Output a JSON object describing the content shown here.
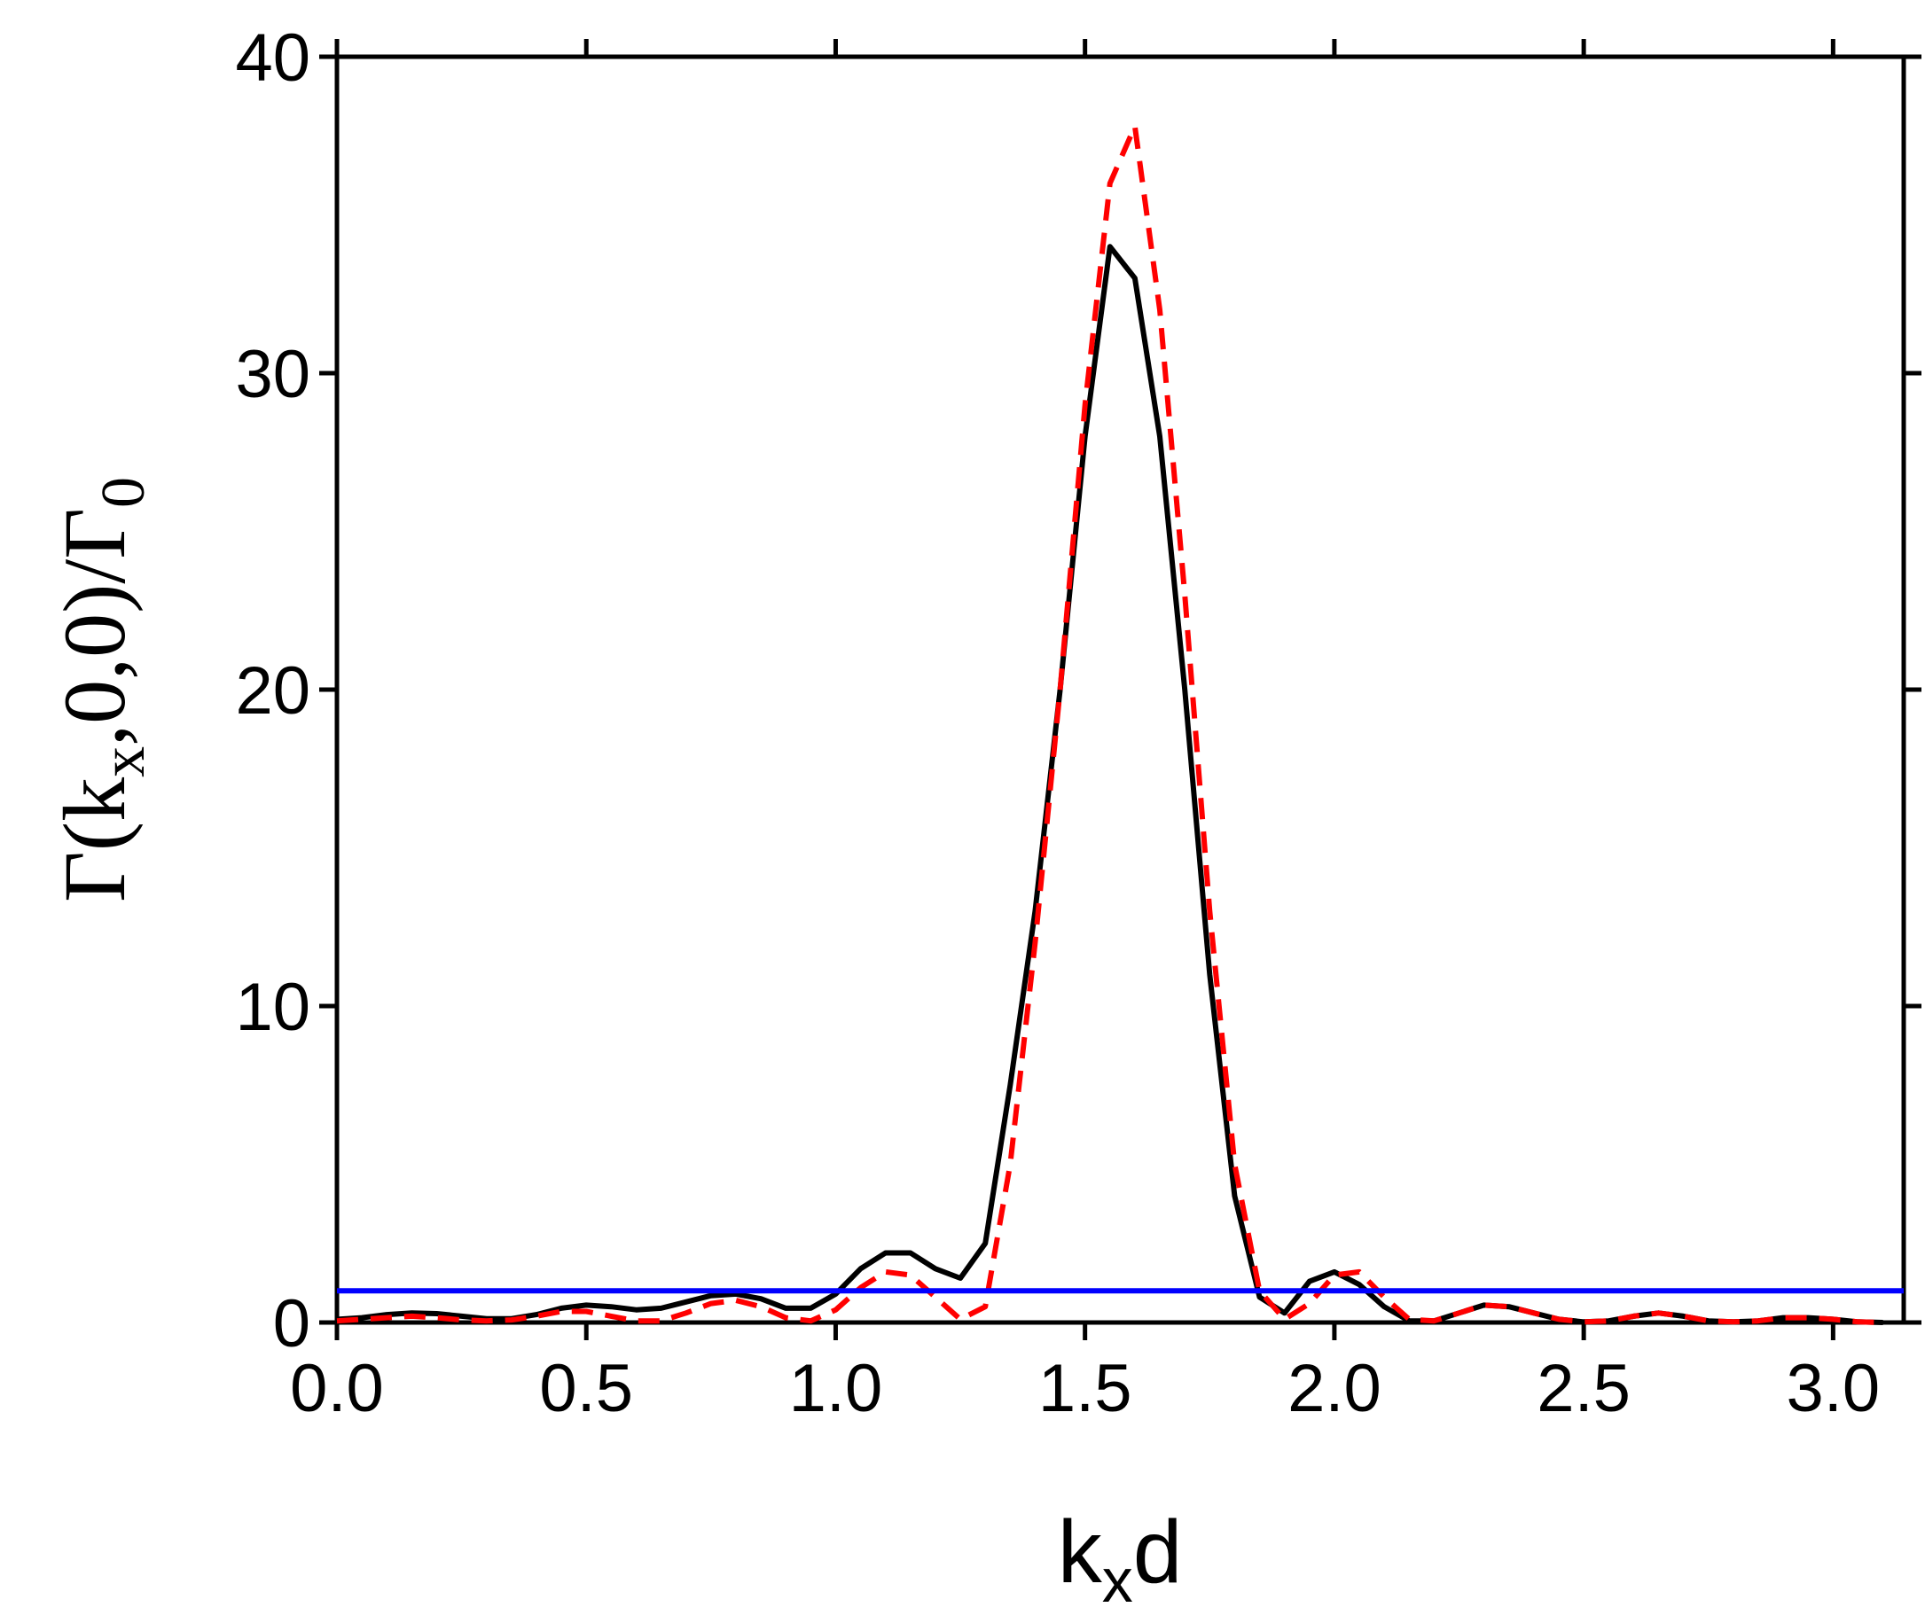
{
  "chart_data": {
    "type": "line",
    "xlabel": [
      "k",
      "x",
      "d"
    ],
    "ylabel": [
      "Γ(k",
      "x",
      ",0,0)/Γ",
      "0"
    ],
    "x": [
      0,
      0.05,
      0.1,
      0.15,
      0.2,
      0.25,
      0.3,
      0.35,
      0.4,
      0.45,
      0.5,
      0.55,
      0.6,
      0.65,
      0.7,
      0.75,
      0.8,
      0.85,
      0.9,
      0.95,
      1.0,
      1.05,
      1.1,
      1.15,
      1.2,
      1.25,
      1.3,
      1.35,
      1.4,
      1.45,
      1.5,
      1.55,
      1.6,
      1.65,
      1.7,
      1.75,
      1.8,
      1.85,
      1.9,
      1.95,
      2.0,
      2.05,
      2.1,
      2.15,
      2.2,
      2.25,
      2.3,
      2.35,
      2.4,
      2.45,
      2.5,
      2.55,
      2.6,
      2.65,
      2.7,
      2.75,
      2.8,
      2.85,
      2.9,
      2.95,
      3.0,
      3.05,
      3.1
    ],
    "series": [
      {
        "color": "#000000",
        "dash": false,
        "values": [
          0.1,
          0.15,
          0.25,
          0.3,
          0.28,
          0.2,
          0.12,
          0.12,
          0.25,
          0.45,
          0.55,
          0.5,
          0.4,
          0.45,
          0.65,
          0.85,
          0.9,
          0.75,
          0.45,
          0.45,
          0.9,
          1.7,
          2.2,
          2.2,
          1.7,
          1.4,
          2.5,
          7.5,
          13,
          20,
          28,
          34,
          33,
          28,
          20,
          11,
          4,
          0.8,
          0.3,
          1.3,
          1.6,
          1.2,
          0.5,
          0.05,
          0.05,
          0.3,
          0.55,
          0.5,
          0.3,
          0.1,
          0.02,
          0.05,
          0.2,
          0.3,
          0.2,
          0.05,
          0.02,
          0.05,
          0.15,
          0.15,
          0.1,
          0.02,
          0.0
        ]
      },
      {
        "color": "#ff0000",
        "dash": true,
        "values": [
          0.05,
          0.1,
          0.15,
          0.2,
          0.15,
          0.08,
          0.05,
          0.08,
          0.2,
          0.35,
          0.35,
          0.2,
          0.05,
          0.05,
          0.3,
          0.6,
          0.7,
          0.5,
          0.15,
          0.05,
          0.4,
          1.1,
          1.6,
          1.5,
          0.8,
          0.1,
          0.5,
          5,
          12,
          20,
          29,
          36,
          37.8,
          32,
          23,
          13,
          5,
          1,
          0.1,
          0.6,
          1.5,
          1.6,
          0.8,
          0.1,
          0.05,
          0.3,
          0.55,
          0.5,
          0.3,
          0.1,
          0.02,
          0.05,
          0.2,
          0.3,
          0.2,
          0.05,
          0.02,
          0.05,
          0.15,
          0.15,
          0.1,
          0.02,
          0.0
        ]
      },
      {
        "color": "#0000ff",
        "dash": false,
        "x": [
          0,
          3.1416
        ],
        "values": [
          1,
          1
        ]
      }
    ],
    "xlim": [
      0,
      3.1416
    ],
    "ylim": [
      0,
      40
    ],
    "xticks": [
      {
        "value": 0,
        "label": "0.0"
      },
      {
        "value": 0.5,
        "label": "0.5"
      },
      {
        "value": 1,
        "label": "1.0"
      },
      {
        "value": 1.5,
        "label": "1.5"
      },
      {
        "value": 2,
        "label": "2.0"
      },
      {
        "value": 2.5,
        "label": "2.5"
      },
      {
        "value": 3,
        "label": "3.0"
      }
    ],
    "yticks": [
      0,
      10,
      20,
      30,
      40
    ],
    "grid": false
  }
}
